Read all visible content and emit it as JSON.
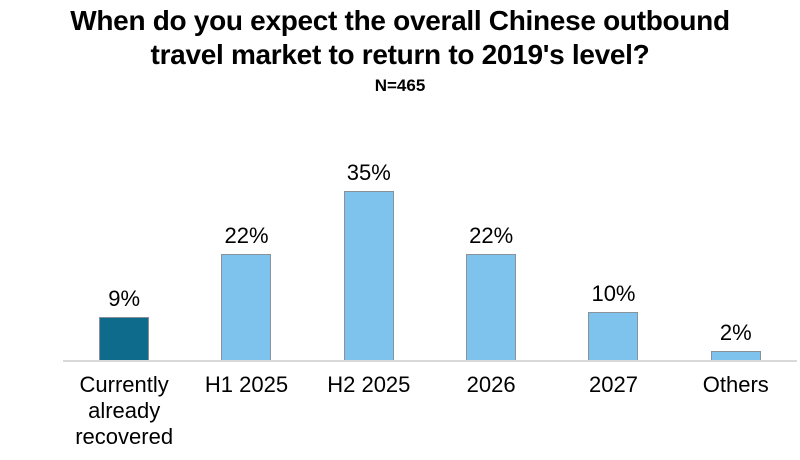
{
  "header": {
    "title_lines": [
      "When do you expect the overall Chinese outbound",
      "travel market to return to 2019's level?"
    ],
    "subtitle": "N=465"
  },
  "chart_data": {
    "type": "bar",
    "title": "When do you expect the overall Chinese outbound travel market to return to 2019's level?",
    "subtitle": "N=465",
    "categories": [
      "Currently already recovered",
      "H1 2025",
      "H2 2025",
      "2026",
      "2027",
      "Others"
    ],
    "values": [
      9,
      22,
      35,
      22,
      10,
      2
    ],
    "value_labels": [
      "9%",
      "22%",
      "35%",
      "22%",
      "10%",
      "2%"
    ],
    "xlabel": "",
    "ylabel": "",
    "ylim": [
      0,
      40
    ],
    "grid": false,
    "legend": false,
    "data_labels": "above bars, percentage",
    "highlight_color": "#0E6B8C",
    "default_bar_color": "#7DC3ED",
    "bar_colors": [
      "#0E6B8C",
      "#7DC3ED",
      "#7DC3ED",
      "#7DC3ED",
      "#7DC3ED",
      "#7DC3ED"
    ],
    "bar_border_color": "#8A9299",
    "axis_line_color": "#D9D9D9",
    "text_color": "#000000"
  }
}
